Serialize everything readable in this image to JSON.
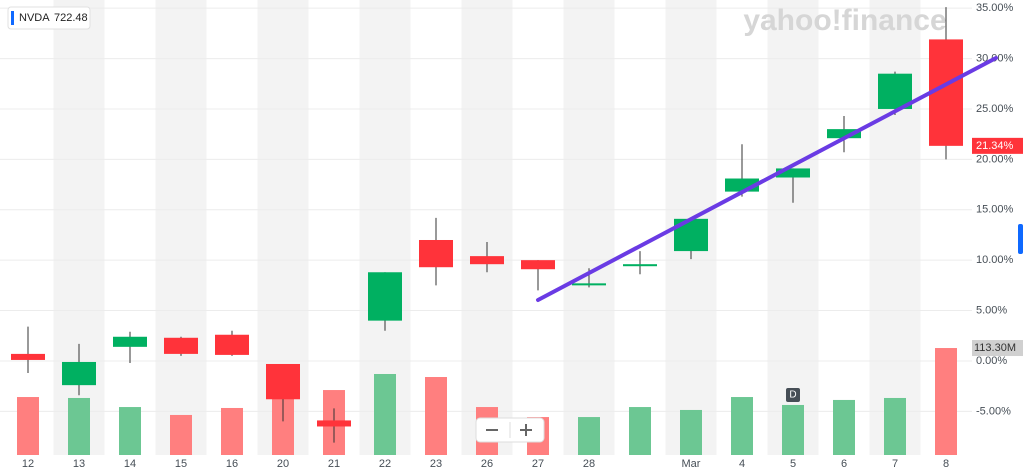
{
  "chart_data": {
    "type": "candlestick",
    "ticker": "NVDA",
    "legend_price": 722.48,
    "watermark": "yahoo!finance",
    "marker_label": "D",
    "categories": [
      "12",
      "13",
      "14",
      "15",
      "16",
      "20",
      "21",
      "22",
      "23",
      "26",
      "27",
      "28",
      null,
      "Mar",
      "4",
      "5",
      "6",
      "7",
      "8"
    ],
    "open": {
      "values": [
        0.7,
        -2.4,
        1.4,
        2.3,
        2.6,
        -0.3,
        -5.9,
        4.0,
        12.0,
        10.4,
        10.0,
        7.5,
        9.4,
        10.9,
        16.8,
        18.2,
        22.1,
        25.0,
        31.9
      ]
    },
    "high": {
      "values": [
        3.4,
        1.7,
        2.9,
        2.4,
        3.0,
        -0.3,
        -4.7,
        8.8,
        14.2,
        11.8,
        10.0,
        9.2,
        10.9,
        14.1,
        21.5,
        19.1,
        24.3,
        28.7,
        35.1
      ]
    },
    "low": {
      "values": [
        -1.2,
        -3.4,
        -0.2,
        0.5,
        0.5,
        -6.0,
        -8.1,
        3.0,
        7.5,
        8.8,
        7.0,
        7.3,
        8.6,
        10.1,
        16.3,
        15.7,
        20.7,
        24.4,
        20.0
      ]
    },
    "close": {
      "values": [
        0.1,
        -0.1,
        2.4,
        0.7,
        0.6,
        -3.8,
        -6.5,
        8.8,
        9.3,
        9.6,
        9.1,
        7.7,
        9.6,
        14.1,
        18.1,
        19.1,
        23.0,
        28.5,
        21.34
      ],
      "value_labels": [
        null,
        null,
        null,
        null,
        null,
        null,
        null,
        null,
        null,
        null,
        null,
        null,
        null,
        null,
        null,
        null,
        null,
        null,
        "21.34%"
      ]
    },
    "up_color": "#00b061",
    "down_color": "#ff333a",
    "volume": {
      "values": [
        61.4,
        60.4,
        50.8,
        42.4,
        49.8,
        71.0,
        68.8,
        85.8,
        82.6,
        50.8,
        40.2,
        40.2,
        50.8,
        47.7,
        61.4,
        53.0,
        58.3,
        60.4,
        113.3
      ],
      "value_labels": [
        null,
        null,
        null,
        null,
        null,
        null,
        null,
        null,
        null,
        null,
        null,
        null,
        null,
        null,
        null,
        null,
        null,
        null,
        "113.30M"
      ]
    },
    "volume_up_color": "#6cc793",
    "volume_down_color": "#ff7f7f",
    "y2lim": [
      0,
      120
    ],
    "trendline": {
      "x": [
        10,
        18.98
      ],
      "values": [
        6.05,
        30.06
      ],
      "color": "#6a3be4"
    },
    "ylim": [
      -9.33,
      35.81
    ],
    "yticks": [
      {
        "value": -5,
        "label": "-5.00%"
      },
      {
        "value": 0,
        "label": "0.00%"
      },
      {
        "value": 5,
        "label": "5.00%"
      },
      {
        "value": 10,
        "label": "10.00%"
      },
      {
        "value": 15,
        "label": "15.00%"
      },
      {
        "value": 20,
        "label": "20.00%"
      },
      {
        "value": 25,
        "label": "25.00%"
      },
      {
        "value": 30,
        "label": "30.00%"
      },
      {
        "value": 35,
        "label": "35.00%"
      }
    ],
    "grid": true
  }
}
